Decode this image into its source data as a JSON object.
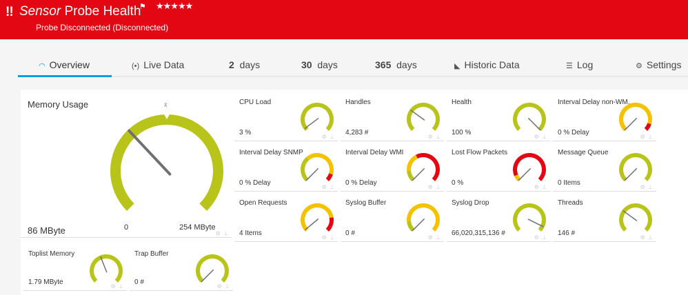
{
  "header": {
    "alert_icon": "!!",
    "title_prefix": "Sensor",
    "title": "Probe Health",
    "flag_icon": "⚑",
    "stars": "★★★★★",
    "status": "Probe Disconnected (Disconnected)",
    "color": "#e30613"
  },
  "tabs": [
    {
      "icon": "gauge-icon",
      "glyph": "◠",
      "num": "",
      "label": "Overview",
      "active": true
    },
    {
      "icon": "live-icon",
      "glyph": "(•)",
      "num": "",
      "label": "Live Data"
    },
    {
      "num": "2",
      "label": "days"
    },
    {
      "num": "30",
      "label": "days"
    },
    {
      "num": "365",
      "label": "days"
    },
    {
      "icon": "chart-icon",
      "glyph": "◣",
      "num": "",
      "label": "Historic Data"
    },
    {
      "icon": "log-icon",
      "glyph": "☰",
      "num": "",
      "label": "Log"
    },
    {
      "icon": "gear-icon",
      "glyph": "⚙",
      "num": "",
      "label": "Settings"
    }
  ],
  "colors": {
    "green": "#b9c41b",
    "yellow": "#f5c200",
    "red": "#e30613",
    "needle": "#707070",
    "accent": "#009fe3"
  },
  "memory": {
    "name": "Memory Usage",
    "value": "86 MByte",
    "min": "0",
    "max": "254 MByte",
    "avg_symbol": "x̄",
    "needle": 0.34,
    "avg": 0.5,
    "segments": [
      [
        0,
        1,
        "green"
      ]
    ]
  },
  "channels": [
    {
      "name": "CPU Load",
      "value": "3 %",
      "needle": 0.03,
      "segments": [
        [
          0,
          1,
          "green"
        ]
      ]
    },
    {
      "name": "Handles",
      "value": "4,283 #",
      "needle": 0.3,
      "segments": [
        [
          0,
          1,
          "green"
        ]
      ]
    },
    {
      "name": "Health",
      "value": "100 %",
      "needle": 1,
      "segments": [
        [
          0,
          1,
          "green"
        ]
      ]
    },
    {
      "name": "Interval Delay non-WM...",
      "value": "0 % Delay",
      "needle": 0,
      "segments": [
        [
          0,
          0.35,
          "green"
        ],
        [
          0,
          0.9,
          "yellow"
        ],
        [
          0.9,
          1,
          "red"
        ]
      ]
    },
    {
      "name": "Interval Delay SNMP",
      "value": "0 % Delay",
      "needle": 0,
      "segments": [
        [
          0,
          0.35,
          "green"
        ],
        [
          0.35,
          0.9,
          "yellow"
        ],
        [
          0.9,
          1,
          "red"
        ]
      ]
    },
    {
      "name": "Interval Delay WMI",
      "value": "0 % Delay",
      "needle": 0,
      "segments": [
        [
          0,
          0.15,
          "green"
        ],
        [
          0.15,
          0.4,
          "yellow"
        ],
        [
          0.4,
          1,
          "red"
        ]
      ]
    },
    {
      "name": "Lost Flow Packets",
      "value": "0 %",
      "needle": 0,
      "segments": [
        [
          0,
          0.08,
          "yellow"
        ],
        [
          0.08,
          1,
          "red"
        ]
      ]
    },
    {
      "name": "Message Queue",
      "value": "0 Items",
      "needle": 0,
      "segments": [
        [
          0,
          1,
          "green"
        ]
      ]
    },
    {
      "name": "Open Requests",
      "value": "4 Items",
      "needle": 0.02,
      "segments": [
        [
          0,
          0.8,
          "yellow"
        ],
        [
          0.8,
          1,
          "red"
        ]
      ]
    },
    {
      "name": "Syslog Buffer",
      "value": "0 #",
      "needle": 0,
      "segments": [
        [
          0,
          0.15,
          "green"
        ],
        [
          0.15,
          1,
          "yellow"
        ]
      ]
    },
    {
      "name": "Syslog Drop",
      "value": "66,020,315,136 #",
      "needle": 0.93,
      "segments": [
        [
          0,
          1,
          "green"
        ]
      ]
    },
    {
      "name": "Threads",
      "value": "146 #",
      "needle": 0.3,
      "segments": [
        [
          0,
          1,
          "green"
        ]
      ]
    },
    {
      "name": "Toplist Memory",
      "value": "1.79 MByte",
      "needle": 0.42,
      "segments": [
        [
          0,
          1,
          "green"
        ]
      ]
    },
    {
      "name": "Trap Buffer",
      "value": "0 #",
      "needle": 0,
      "segments": [
        [
          0,
          1,
          "green"
        ]
      ]
    }
  ],
  "tile_controls": "⚙ ⊥"
}
